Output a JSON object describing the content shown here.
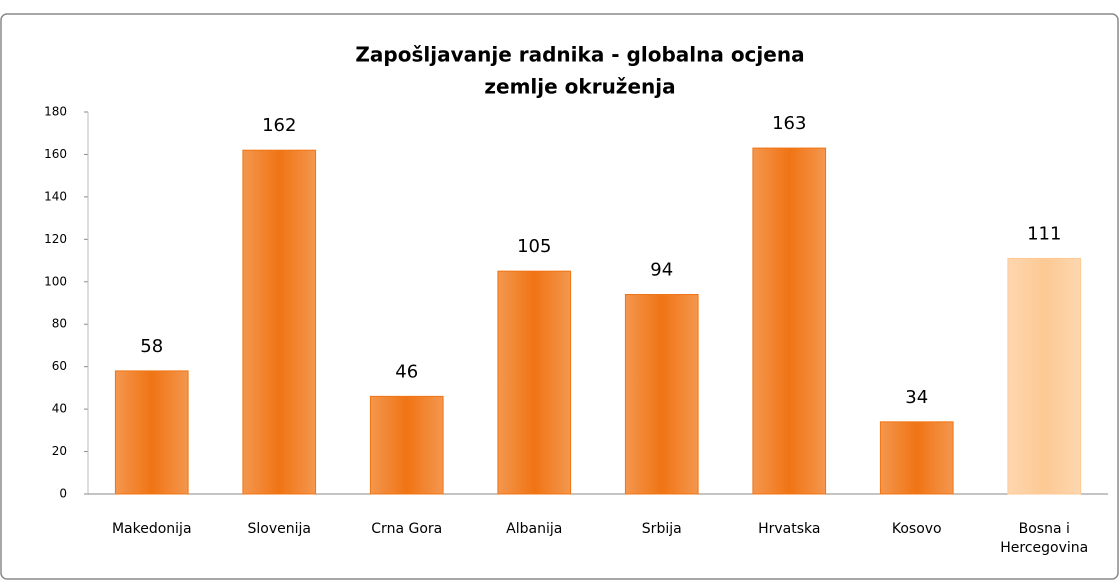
{
  "chart_data": {
    "type": "bar",
    "title": [
      "Zapošljavanje radnika - globalna ocjena",
      "zemlje okruženja"
    ],
    "categories": [
      "Makedonija",
      "Slovenija",
      "Crna Gora",
      "Albanija",
      "Srbija",
      "Hrvatska",
      "Kosovo",
      "Bosna i Hercegovina"
    ],
    "values": [
      58,
      162,
      46,
      105,
      94,
      163,
      34,
      111
    ],
    "colors": [
      "#f07414",
      "#f07414",
      "#f07414",
      "#f07414",
      "#f07414",
      "#f07414",
      "#f07414",
      "#fdc994"
    ],
    "ylim": [
      0,
      180
    ],
    "yticks": [
      0,
      20,
      40,
      60,
      80,
      100,
      120,
      140,
      160,
      180
    ],
    "grid": false
  }
}
